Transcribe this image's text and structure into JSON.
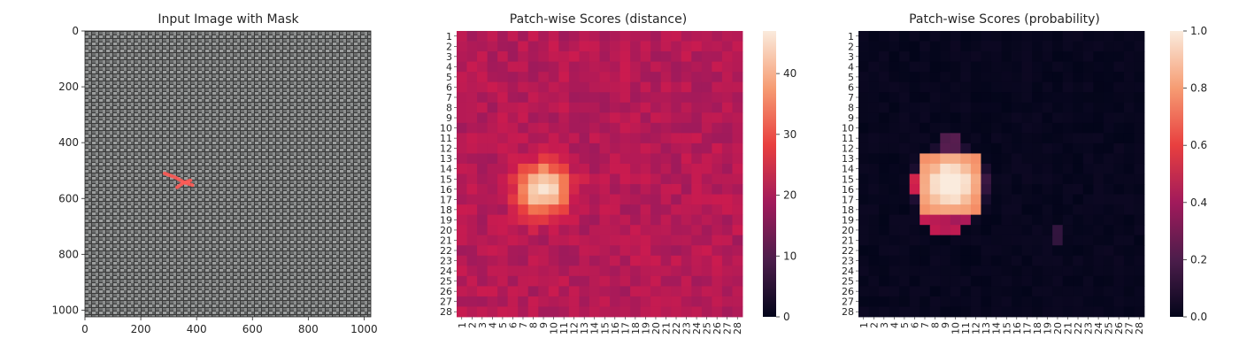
{
  "figure": {
    "background": "#ffffff",
    "text_color": "#262626"
  },
  "panels": [
    {
      "title": "Input Image with Mask",
      "x_ticks": [
        "0",
        "200",
        "400",
        "600",
        "800",
        "1000"
      ],
      "y_ticks": [
        "0",
        "200",
        "400",
        "600",
        "800",
        "1000"
      ]
    },
    {
      "title": "Patch-wise Scores (distance)",
      "colorbar_ticks": [
        "0",
        "10",
        "20",
        "30",
        "40"
      ]
    },
    {
      "title": "Patch-wise Scores (probability)",
      "colorbar_ticks": [
        "0.0",
        "0.2",
        "0.4",
        "0.6",
        "0.8",
        "1.0"
      ]
    }
  ],
  "colors": {
    "mask": "#ff5a55",
    "fabric_dark": "#3a3a3a",
    "fabric_light": "#9a9c9c",
    "colormap": "rocket"
  },
  "chart_data": [
    {
      "type": "image",
      "title": "Input Image with Mask",
      "xlim": [
        0,
        1024
      ],
      "ylim": [
        1024,
        0
      ],
      "x_ticks": [
        0,
        200,
        400,
        600,
        800,
        1000
      ],
      "y_ticks": [
        0,
        200,
        400,
        600,
        800,
        1000
      ],
      "mask_strokes": [
        [
          [
            285,
            510
          ],
          [
            325,
            525
          ],
          [
            355,
            542
          ],
          [
            385,
            552
          ]
        ],
        [
          [
            330,
            560
          ],
          [
            352,
            545
          ],
          [
            378,
            535
          ]
        ]
      ]
    },
    {
      "type": "heatmap",
      "title": "Patch-wise Scores (distance)",
      "rows": 28,
      "cols": 28,
      "x_tick_labels": [
        "1",
        "2",
        "3",
        "4",
        "5",
        "6",
        "7",
        "8",
        "9",
        "10",
        "11",
        "12",
        "13",
        "14",
        "15",
        "16",
        "17",
        "18",
        "19",
        "20",
        "21",
        "22",
        "23",
        "24",
        "25",
        "26",
        "27",
        "28"
      ],
      "y_tick_labels": [
        "1",
        "2",
        "3",
        "4",
        "5",
        "6",
        "7",
        "8",
        "9",
        "10",
        "11",
        "12",
        "13",
        "14",
        "15",
        "16",
        "17",
        "18",
        "19",
        "20",
        "21",
        "22",
        "23",
        "24",
        "25",
        "26",
        "27",
        "28"
      ],
      "colorbar": {
        "min": 0,
        "max": 47,
        "ticks": [
          0,
          10,
          20,
          30,
          40
        ]
      },
      "background_value": 21,
      "hotspot": {
        "center_col": 9,
        "center_row": 16,
        "peak_value": 47
      },
      "notes": "Background 18-25; anomaly hotspot around columns 7-11, rows 13-19 reaching ~47"
    },
    {
      "type": "heatmap",
      "title": "Patch-wise Scores (probability)",
      "rows": 28,
      "cols": 28,
      "x_tick_labels": [
        "1",
        "2",
        "3",
        "4",
        "5",
        "6",
        "7",
        "8",
        "9",
        "10",
        "11",
        "12",
        "13",
        "14",
        "15",
        "16",
        "17",
        "18",
        "19",
        "20",
        "21",
        "22",
        "23",
        "24",
        "25",
        "26",
        "27",
        "28"
      ],
      "y_tick_labels": [
        "1",
        "2",
        "3",
        "4",
        "5",
        "6",
        "7",
        "8",
        "9",
        "10",
        "11",
        "12",
        "13",
        "14",
        "15",
        "16",
        "17",
        "18",
        "19",
        "20",
        "21",
        "22",
        "23",
        "24",
        "25",
        "26",
        "27",
        "28"
      ],
      "colorbar": {
        "min": 0.0,
        "max": 1.0,
        "ticks": [
          0.0,
          0.2,
          0.4,
          0.6,
          0.8,
          1.0
        ]
      },
      "background_value": 0.0,
      "hotspot": {
        "center_col": 9,
        "center_row": 16,
        "peak_value": 1.0
      },
      "notes": "Near zero everywhere except block cols 7-12, rows 13-18 saturating near 0.8-1.0"
    }
  ]
}
